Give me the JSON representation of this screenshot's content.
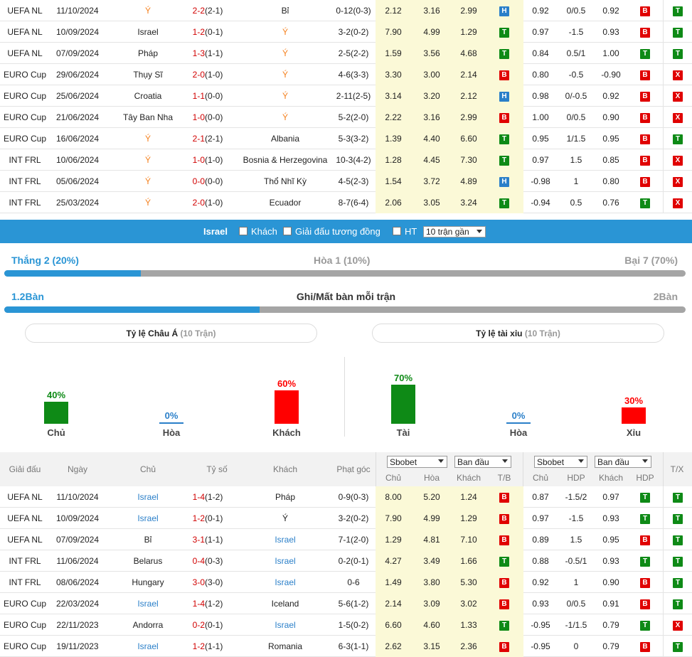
{
  "top_rows": [
    {
      "league": "UEFA NL",
      "date": "11/10/2024",
      "home": "Ý",
      "score": "2-2",
      "ht": "(2-1)",
      "away": "Bỉ",
      "corner": "0-12(0-3)",
      "o1": "2.12",
      "o2": "3.16",
      "o3": "2.99",
      "tb": "H",
      "a1": "0.92",
      "a2": "0/0.5",
      "a3": "0.92",
      "hdp": "B",
      "tx": "T",
      "home_cls": "orange",
      "away_cls": ""
    },
    {
      "league": "UEFA NL",
      "date": "10/09/2024",
      "home": "Israel",
      "score": "1-2",
      "ht": "(0-1)",
      "away": "Ý",
      "corner": "3-2(0-2)",
      "o1": "7.90",
      "o2": "4.99",
      "o3": "1.29",
      "tb": "T",
      "a1": "0.97",
      "a2": "-1.5",
      "a3": "0.93",
      "hdp": "B",
      "tx": "T",
      "home_cls": "",
      "away_cls": "orange"
    },
    {
      "league": "UEFA NL",
      "date": "07/09/2024",
      "home": "Pháp",
      "score": "1-3",
      "ht": "(1-1)",
      "away": "Ý",
      "corner": "2-5(2-2)",
      "o1": "1.59",
      "o2": "3.56",
      "o3": "4.68",
      "tb": "T",
      "a1": "0.84",
      "a2": "0.5/1",
      "a3": "1.00",
      "hdp": "T",
      "tx": "T",
      "home_cls": "",
      "away_cls": "orange"
    },
    {
      "league": "EURO Cup",
      "date": "29/06/2024",
      "home": "Thụy Sĩ",
      "score": "2-0",
      "ht": "(1-0)",
      "away": "Ý",
      "corner": "4-6(3-3)",
      "o1": "3.30",
      "o2": "3.00",
      "o3": "2.14",
      "tb": "B",
      "a1": "0.80",
      "a2": "-0.5",
      "a3": "-0.90",
      "hdp": "B",
      "tx": "X",
      "home_cls": "",
      "away_cls": "orange"
    },
    {
      "league": "EURO Cup",
      "date": "25/06/2024",
      "home": "Croatia",
      "score": "1-1",
      "ht": "(0-0)",
      "away": "Ý",
      "corner": "2-11(2-5)",
      "o1": "3.14",
      "o2": "3.20",
      "o3": "2.12",
      "tb": "H",
      "a1": "0.98",
      "a2": "0/-0.5",
      "a3": "0.92",
      "hdp": "B",
      "tx": "X",
      "home_cls": "",
      "away_cls": "orange"
    },
    {
      "league": "EURO Cup",
      "date": "21/06/2024",
      "home": "Tây Ban Nha",
      "score": "1-0",
      "ht": "(0-0)",
      "away": "Ý",
      "corner": "5-2(2-0)",
      "o1": "2.22",
      "o2": "3.16",
      "o3": "2.99",
      "tb": "B",
      "a1": "1.00",
      "a2": "0/0.5",
      "a3": "0.90",
      "hdp": "B",
      "tx": "X",
      "home_cls": "",
      "away_cls": "orange"
    },
    {
      "league": "EURO Cup",
      "date": "16/06/2024",
      "home": "Ý",
      "score": "2-1",
      "ht": "(2-1)",
      "away": "Albania",
      "corner": "5-3(3-2)",
      "o1": "1.39",
      "o2": "4.40",
      "o3": "6.60",
      "tb": "T",
      "a1": "0.95",
      "a2": "1/1.5",
      "a3": "0.95",
      "hdp": "B",
      "tx": "T",
      "home_cls": "orange",
      "away_cls": ""
    },
    {
      "league": "INT FRL",
      "date": "10/06/2024",
      "home": "Ý",
      "score": "1-0",
      "ht": "(1-0)",
      "away": "Bosnia & Herzegovina",
      "corner": "10-3(4-2)",
      "o1": "1.28",
      "o2": "4.45",
      "o3": "7.30",
      "tb": "T",
      "a1": "0.97",
      "a2": "1.5",
      "a3": "0.85",
      "hdp": "B",
      "tx": "X",
      "home_cls": "orange",
      "away_cls": ""
    },
    {
      "league": "INT FRL",
      "date": "05/06/2024",
      "home": "Ý",
      "score": "0-0",
      "ht": "(0-0)",
      "away": "Thổ Nhĩ Kỳ",
      "corner": "4-5(2-3)",
      "o1": "1.54",
      "o2": "3.72",
      "o3": "4.89",
      "tb": "H",
      "a1": "-0.98",
      "a2": "1",
      "a3": "0.80",
      "hdp": "B",
      "tx": "X",
      "home_cls": "orange",
      "away_cls": ""
    },
    {
      "league": "INT FRL",
      "date": "25/03/2024",
      "home": "Ý",
      "score": "2-0",
      "ht": "(1-0)",
      "away": "Ecuador",
      "corner": "8-7(6-4)",
      "o1": "2.06",
      "o2": "3.05",
      "o3": "3.24",
      "tb": "T",
      "a1": "-0.94",
      "a2": "0.5",
      "a3": "0.76",
      "hdp": "T",
      "tx": "X",
      "home_cls": "orange",
      "away_cls": ""
    }
  ],
  "filter": {
    "team": "Israel",
    "opt_away": "Khách",
    "opt_same_league": "Giải đấu tương đồng",
    "opt_ht": "HT",
    "select_value": "10 trận gần"
  },
  "summary": {
    "win": "Thắng 2 (20%)",
    "draw": "Hòa 1 (10%)",
    "loss": "Bại 7 (70%)",
    "win_fraction": 0.2,
    "goals_left": "1.2Bàn",
    "goals_title": "Ghi/Mất bàn mỗi trận",
    "goals_right": "2Bàn",
    "goals_fraction": 0.375
  },
  "pills": {
    "asian_label": "Tỷ lệ Châu Á",
    "asian_sub": "(10 Trận)",
    "ou_label": "Tỷ lệ tài xỉu",
    "ou_sub": "(10 Trận)"
  },
  "columns": {
    "home_pct": "40%",
    "home_lbl": "Chủ",
    "home_val": 40,
    "draw_pct": "0%",
    "draw_lbl": "Hòa",
    "draw_val": 0,
    "away_pct": "60%",
    "away_lbl": "Khách",
    "away_val": 60,
    "over_pct": "70%",
    "over_lbl": "Tài",
    "over_val": 70,
    "ou_draw_pct": "0%",
    "ou_draw_lbl": "Hòa",
    "ou_draw_val": 0,
    "under_pct": "30%",
    "under_lbl": "Xỉu",
    "under_val": 30,
    "colors": {
      "green": "#0e8a16",
      "red": "#ff0000",
      "blue": "#2a7fc9"
    }
  },
  "bottom_header": {
    "league": "Giải đấu",
    "date": "Ngày",
    "home": "Chủ",
    "score": "Tỷ số",
    "away": "Khách",
    "corner": "Phạt góc",
    "sel1": "Sbobet",
    "sel2": "Ban đầu",
    "sel3": "Sbobet",
    "sel4": "Ban đầu",
    "s_home": "Chủ",
    "s_draw": "Hòa",
    "s_away": "Khách",
    "s_tb": "T/B",
    "a_home": "Chủ",
    "a_hdp": "HDP",
    "a_away": "Khách",
    "a_hdp2": "HDP",
    "tx": "T/X"
  },
  "bottom_rows": [
    {
      "league": "UEFA NL",
      "date": "11/10/2024",
      "home": "Israel",
      "score": "1-4",
      "ht": "(1-2)",
      "away": "Pháp",
      "corner": "0-9(0-3)",
      "o1": "8.00",
      "o2": "5.20",
      "o3": "1.24",
      "tb": "B",
      "a1": "0.87",
      "a2": "-1.5/2",
      "a3": "0.97",
      "hdp": "T",
      "tx": "T",
      "home_cls": "blue",
      "away_cls": ""
    },
    {
      "league": "UEFA NL",
      "date": "10/09/2024",
      "home": "Israel",
      "score": "1-2",
      "ht": "(0-1)",
      "away": "Ý",
      "corner": "3-2(0-2)",
      "o1": "7.90",
      "o2": "4.99",
      "o3": "1.29",
      "tb": "B",
      "a1": "0.97",
      "a2": "-1.5",
      "a3": "0.93",
      "hdp": "T",
      "tx": "T",
      "home_cls": "blue",
      "away_cls": ""
    },
    {
      "league": "UEFA NL",
      "date": "07/09/2024",
      "home": "Bỉ",
      "score": "3-1",
      "ht": "(1-1)",
      "away": "Israel",
      "corner": "7-1(2-0)",
      "o1": "1.29",
      "o2": "4.81",
      "o3": "7.10",
      "tb": "B",
      "a1": "0.89",
      "a2": "1.5",
      "a3": "0.95",
      "hdp": "B",
      "tx": "T",
      "home_cls": "",
      "away_cls": "blue"
    },
    {
      "league": "INT FRL",
      "date": "11/06/2024",
      "home": "Belarus",
      "score": "0-4",
      "ht": "(0-3)",
      "away": "Israel",
      "corner": "0-2(0-1)",
      "o1": "4.27",
      "o2": "3.49",
      "o3": "1.66",
      "tb": "T",
      "a1": "0.88",
      "a2": "-0.5/1",
      "a3": "0.93",
      "hdp": "T",
      "tx": "T",
      "home_cls": "",
      "away_cls": "blue"
    },
    {
      "league": "INT FRL",
      "date": "08/06/2024",
      "home": "Hungary",
      "score": "3-0",
      "ht": "(3-0)",
      "away": "Israel",
      "corner": "0-6",
      "o1": "1.49",
      "o2": "3.80",
      "o3": "5.30",
      "tb": "B",
      "a1": "0.92",
      "a2": "1",
      "a3": "0.90",
      "hdp": "B",
      "tx": "T",
      "home_cls": "",
      "away_cls": "blue"
    },
    {
      "league": "EURO Cup",
      "date": "22/03/2024",
      "home": "Israel",
      "score": "1-4",
      "ht": "(1-2)",
      "away": "Iceland",
      "corner": "5-6(1-2)",
      "o1": "2.14",
      "o2": "3.09",
      "o3": "3.02",
      "tb": "B",
      "a1": "0.93",
      "a2": "0/0.5",
      "a3": "0.91",
      "hdp": "B",
      "tx": "T",
      "home_cls": "blue",
      "away_cls": ""
    },
    {
      "league": "EURO Cup",
      "date": "22/11/2023",
      "home": "Andorra",
      "score": "0-2",
      "ht": "(0-1)",
      "away": "Israel",
      "corner": "1-5(0-2)",
      "o1": "6.60",
      "o2": "4.60",
      "o3": "1.33",
      "tb": "T",
      "a1": "-0.95",
      "a2": "-1/1.5",
      "a3": "0.79",
      "hdp": "T",
      "tx": "X",
      "home_cls": "",
      "away_cls": "blue"
    },
    {
      "league": "EURO Cup",
      "date": "19/11/2023",
      "home": "Israel",
      "score": "1-2",
      "ht": "(1-1)",
      "away": "Romania",
      "corner": "6-3(1-1)",
      "o1": "2.62",
      "o2": "3.15",
      "o3": "2.36",
      "tb": "B",
      "a1": "-0.95",
      "a2": "0",
      "a3": "0.79",
      "hdp": "B",
      "tx": "T",
      "home_cls": "blue",
      "away_cls": ""
    }
  ]
}
